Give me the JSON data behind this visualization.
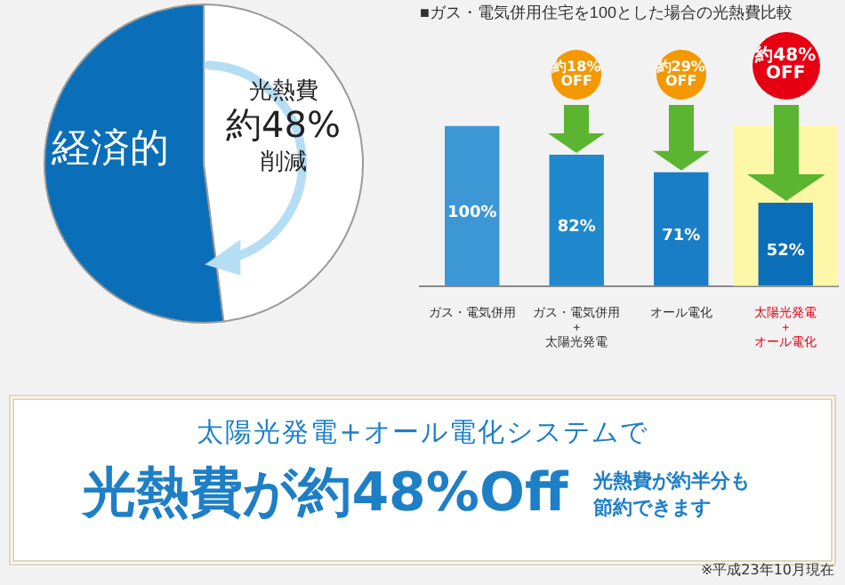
{
  "chart_data": [
    {
      "type": "pie",
      "categories": [
        "経済的",
        null
      ],
      "values": [
        52,
        48
      ],
      "colors": [
        "#0a6fb8",
        "#ffffff"
      ],
      "legend": false,
      "annotations": [
        "光熱費",
        "約48%",
        "削減"
      ]
    },
    {
      "type": "bar",
      "title": "■ガス・電気併用住宅を100とした場合の光熱費比較",
      "categories": [
        "ガス・電気併用",
        "ガス・電気併用\n+\n太陽光発電",
        "オール電化",
        "太陽光発電\n+\nオール電化"
      ],
      "values": [
        100,
        82,
        71,
        52
      ],
      "value_labels": [
        "100%",
        "82%",
        "71%",
        "52%"
      ],
      "colors": [
        "#3d97d5",
        "#2088cd",
        "#1a7ec6",
        "#0a6fb8"
      ],
      "legend": false,
      "bands": [
        {
          "axis": "x",
          "from": "太陽光発電\n+\nオール電化",
          "to": "太陽光発電\n+\nオール電化",
          "color": "#fff7a8"
        }
      ],
      "annotations": [
        "約18%\nOFF",
        "約29%\nOFF",
        "約48%\nOFF"
      ]
    },
    {
      "type": "other",
      "title": "太陽光発電+オール電化システムで",
      "annotations": [
        "光熱費が約48%Off",
        "光熱費が約半分も節約できます",
        "※平成23年10月現在"
      ]
    }
  ]
}
